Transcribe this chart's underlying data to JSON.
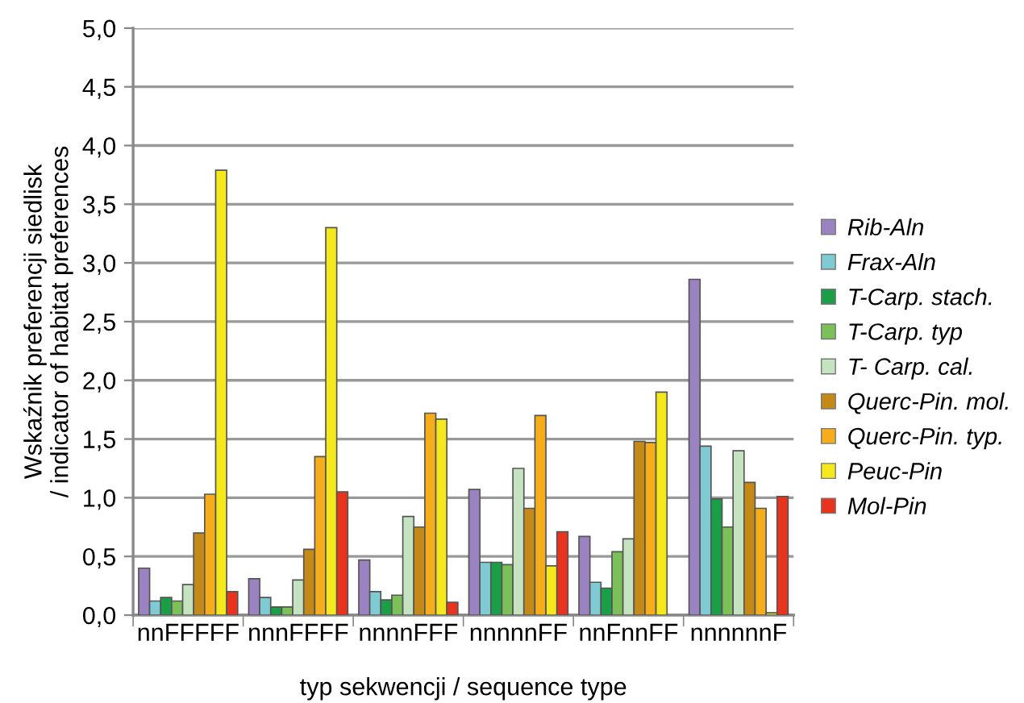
{
  "chart_data": {
    "type": "bar",
    "xlabel": "typ sekwencji / sequence type",
    "ylabel": "Wskaźnik preferencji siedlisk\n/ indicator of habitat preferences",
    "categories": [
      "nnFFFFF",
      "nnnFFFF",
      "nnnnFFF",
      "nnnnnFF",
      "nnFnnFF",
      "nnnnnnF"
    ],
    "series": [
      {
        "name": "Rib-Aln",
        "color": "#9b82c0",
        "values": [
          0.4,
          0.31,
          0.47,
          1.07,
          0.67,
          2.86
        ]
      },
      {
        "name": "Frax-Aln",
        "color": "#80cbd3",
        "values": [
          0.12,
          0.15,
          0.2,
          0.45,
          0.28,
          1.44
        ]
      },
      {
        "name": "T-Carp. stach.",
        "color": "#1a9e48",
        "values": [
          0.15,
          0.07,
          0.13,
          0.45,
          0.23,
          0.99
        ]
      },
      {
        "name": "T-Carp. typ",
        "color": "#7cc05a",
        "values": [
          0.12,
          0.07,
          0.17,
          0.43,
          0.54,
          0.75
        ]
      },
      {
        "name": "T- Carp. cal.",
        "color": "#c5e3c0",
        "values": [
          0.26,
          0.3,
          0.84,
          1.25,
          0.65,
          1.4
        ]
      },
      {
        "name": "Querc-Pin. mol.",
        "color": "#c48a17",
        "values": [
          0.7,
          0.56,
          0.75,
          0.91,
          1.48,
          1.13
        ]
      },
      {
        "name": "Querc-Pin. typ.",
        "color": "#f5ad1b",
        "values": [
          1.03,
          1.35,
          1.72,
          1.7,
          1.47,
          0.91
        ]
      },
      {
        "name": "Peuc-Pin",
        "color": "#f5e81c",
        "values": [
          3.79,
          3.3,
          1.67,
          0.42,
          1.9,
          0.02
        ]
      },
      {
        "name": "Mol-Pin",
        "color": "#e8331f",
        "values": [
          0.2,
          1.05,
          0.11,
          0.71,
          null,
          1.01
        ]
      }
    ],
    "ylim": [
      0,
      5
    ],
    "yticks": [
      {
        "value": 0,
        "label": "0,0"
      },
      {
        "value": 0.5,
        "label": "0,5"
      },
      {
        "value": 1,
        "label": "1,0"
      },
      {
        "value": 1.5,
        "label": "1,5"
      },
      {
        "value": 2,
        "label": "2,0"
      },
      {
        "value": 2.5,
        "label": "2,5"
      },
      {
        "value": 3,
        "label": "3,0"
      },
      {
        "value": 3.5,
        "label": "3,5"
      },
      {
        "value": 4,
        "label": "4,0"
      },
      {
        "value": 4.5,
        "label": "4,5"
      },
      {
        "value": 5,
        "label": "5,0"
      }
    ],
    "grid": "y",
    "legend": "right"
  }
}
